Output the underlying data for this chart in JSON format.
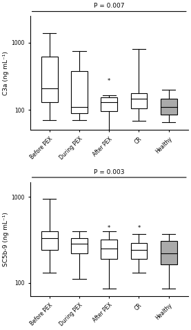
{
  "top_plot": {
    "ylabel": "C3a (ng mL⁻¹)",
    "pvalue": "P = 0.007",
    "ylim_log": [
      50,
      2500
    ],
    "yticks": [
      100,
      1000
    ],
    "categories": [
      "Before PEX",
      "During PEX",
      "After PEX",
      "CR",
      "Healthy"
    ],
    "colors": [
      "white",
      "white",
      "white",
      "white",
      "#aaaaaa"
    ],
    "boxes": [
      {
        "q1": 130,
        "median": 210,
        "q3": 620,
        "whislo": 70,
        "whishi": 1400
      },
      {
        "q1": 90,
        "median": 110,
        "q3": 380,
        "whislo": 70,
        "whishi": 750
      },
      {
        "q1": 95,
        "median": 130,
        "q3": 155,
        "whislo": 32,
        "whishi": 165,
        "fliers": [
          270
        ]
      },
      {
        "q1": 105,
        "median": 145,
        "q3": 175,
        "whislo": 68,
        "whishi": 800
      },
      {
        "q1": 85,
        "median": 110,
        "q3": 145,
        "whislo": 65,
        "whishi": 200
      }
    ]
  },
  "bottom_plot": {
    "ylabel": "SC5b-9 (ng mL⁻¹)",
    "pvalue": "P = 0.003",
    "ylim_log": [
      70,
      1500
    ],
    "yticks": [
      100,
      1000
    ],
    "categories": [
      "Before PEX",
      "During PEX",
      "After PEX",
      "CR",
      "Healthy"
    ],
    "colors": [
      "white",
      "white",
      "white",
      "white",
      "#aaaaaa"
    ],
    "boxes": [
      {
        "q1": 240,
        "median": 330,
        "q3": 400,
        "whislo": 130,
        "whishi": 950
      },
      {
        "q1": 220,
        "median": 285,
        "q3": 330,
        "whislo": 110,
        "whishi": 400
      },
      {
        "q1": 190,
        "median": 250,
        "q3": 320,
        "whislo": 85,
        "whishi": 400,
        "fliers": [
          430
        ]
      },
      {
        "q1": 190,
        "median": 240,
        "q3": 290,
        "whislo": 130,
        "whishi": 370,
        "fliers": [
          430
        ]
      },
      {
        "q1": 165,
        "median": 220,
        "q3": 310,
        "whislo": 85,
        "whishi": 370
      }
    ]
  },
  "fig_width": 2.77,
  "fig_height": 4.78,
  "dpi": 100,
  "box_width": 0.55,
  "linewidth": 0.8,
  "tick_fontsize": 5.5,
  "label_fontsize": 6.5,
  "pvalue_fontsize": 6.5
}
